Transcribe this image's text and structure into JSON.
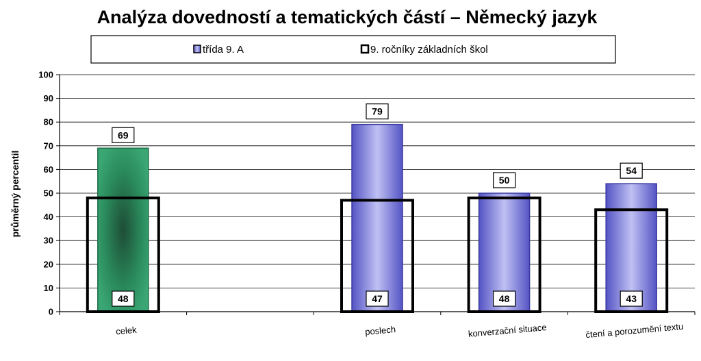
{
  "chart_data": {
    "type": "bar",
    "title": "Analýza dovedností a tematických částí – Německý jazyk",
    "ylabel": "průměrný percentil",
    "xlabel": "",
    "ylim": [
      0,
      100
    ],
    "yticks": [
      0,
      10,
      20,
      30,
      40,
      50,
      60,
      70,
      80,
      90,
      100
    ],
    "grid": true,
    "legend_position": "top",
    "categories": [
      "celek",
      "",
      "poslech",
      "konverzační situace",
      "čtení a porozumění textu"
    ],
    "series": [
      {
        "name": "třída 9. A",
        "values": [
          69,
          null,
          79,
          50,
          54
        ]
      },
      {
        "name": "9. ročníky základních škol",
        "values": [
          48,
          null,
          47,
          48,
          43
        ]
      }
    ],
    "colors": {
      "series_1": "#7b7bdc",
      "series_1_first_bar": "#2e9c6a",
      "series_2_outline": "#000000",
      "grid": "#000000"
    }
  }
}
